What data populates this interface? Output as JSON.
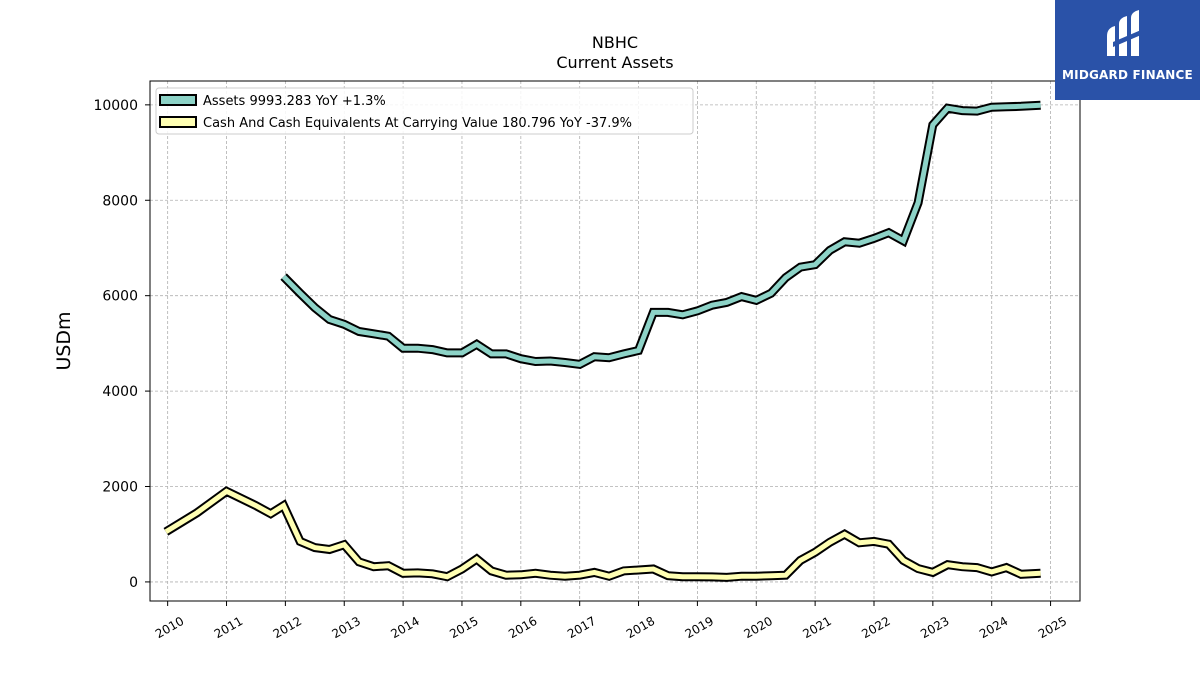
{
  "logo": {
    "text": "MIDGARD FINANCE",
    "icon": "midgard-logo-icon",
    "background": "#2a52a8"
  },
  "chart_data": {
    "type": "line",
    "title": "NBHC",
    "subtitle": "Current  Assets",
    "ylabel": "USDm",
    "xlabel": "",
    "xlim": [
      2009.7,
      2025.5
    ],
    "ylim": [
      -400,
      10500
    ],
    "x_ticks": [
      "2010",
      "2011",
      "2012",
      "2013",
      "2014",
      "2015",
      "2016",
      "2017",
      "2018",
      "2019",
      "2020",
      "2021",
      "2022",
      "2023",
      "2024",
      "2025"
    ],
    "y_ticks": [
      0,
      2000,
      4000,
      6000,
      8000,
      10000
    ],
    "y_tick_labels": [
      "0",
      "2000",
      "4000",
      "6000",
      "8000",
      "10000"
    ],
    "grid": true,
    "legend_position": "top-left",
    "series": [
      {
        "name": "Assets",
        "legend_label": "Assets  9993.283 YoY +1.3%",
        "color": "#8dd3c7",
        "x": [
          2011.97,
          2012.25,
          2012.5,
          2012.75,
          2013.0,
          2013.25,
          2013.5,
          2013.75,
          2014.0,
          2014.25,
          2014.5,
          2014.75,
          2015.0,
          2015.25,
          2015.5,
          2015.75,
          2016.0,
          2016.25,
          2016.5,
          2016.75,
          2017.0,
          2017.25,
          2017.5,
          2017.75,
          2018.0,
          2018.25,
          2018.5,
          2018.75,
          2019.0,
          2019.25,
          2019.5,
          2019.75,
          2020.0,
          2020.25,
          2020.5,
          2020.75,
          2021.0,
          2021.25,
          2021.5,
          2021.75,
          2022.0,
          2022.25,
          2022.5,
          2022.75,
          2023.0,
          2023.25,
          2023.5,
          2023.75,
          2024.0,
          2024.25,
          2024.5,
          2024.83
        ],
        "values": [
          6400,
          6050,
          5750,
          5500,
          5400,
          5250,
          5200,
          5150,
          4900,
          4900,
          4870,
          4800,
          4800,
          4980,
          4780,
          4780,
          4680,
          4620,
          4630,
          4600,
          4560,
          4720,
          4700,
          4780,
          4850,
          5650,
          5650,
          5600,
          5680,
          5800,
          5860,
          5980,
          5900,
          6050,
          6380,
          6600,
          6650,
          6950,
          7130,
          7100,
          7200,
          7320,
          7150,
          7950,
          9580,
          9930,
          9880,
          9870,
          9950,
          9960,
          9970,
          9993.283
        ]
      },
      {
        "name": "Cash And Cash Equivalents At Carrying Value",
        "legend_label": "Cash And Cash Equivalents At Carrying Value  180.796 YoY -37.9%",
        "color": "#ffffb3",
        "x": [
          2009.97,
          2010.5,
          2011.0,
          2011.5,
          2011.75,
          2011.97,
          2012.25,
          2012.5,
          2012.75,
          2013.0,
          2013.25,
          2013.5,
          2013.75,
          2014.0,
          2014.25,
          2014.5,
          2014.75,
          2015.0,
          2015.25,
          2015.5,
          2015.75,
          2016.0,
          2016.25,
          2016.5,
          2016.75,
          2017.0,
          2017.25,
          2017.5,
          2017.75,
          2018.0,
          2018.25,
          2018.5,
          2018.75,
          2019.0,
          2019.25,
          2019.5,
          2019.75,
          2020.0,
          2020.25,
          2020.5,
          2020.75,
          2021.0,
          2021.25,
          2021.5,
          2021.75,
          2022.0,
          2022.25,
          2022.5,
          2022.75,
          2023.0,
          2023.25,
          2023.5,
          2023.75,
          2024.0,
          2024.25,
          2024.5,
          2024.83
        ],
        "values": [
          1050,
          1450,
          1900,
          1600,
          1430,
          1600,
          850,
          720,
          680,
          780,
          420,
          320,
          340,
          180,
          190,
          170,
          110,
          270,
          480,
          230,
          140,
          150,
          180,
          140,
          120,
          140,
          200,
          120,
          230,
          250,
          270,
          130,
          110,
          110,
          105,
          95,
          120,
          120,
          130,
          140,
          450,
          620,
          830,
          1000,
          820,
          850,
          790,
          450,
          280,
          200,
          360,
          320,
          300,
          210,
          300,
          160,
          180.796
        ]
      }
    ]
  }
}
